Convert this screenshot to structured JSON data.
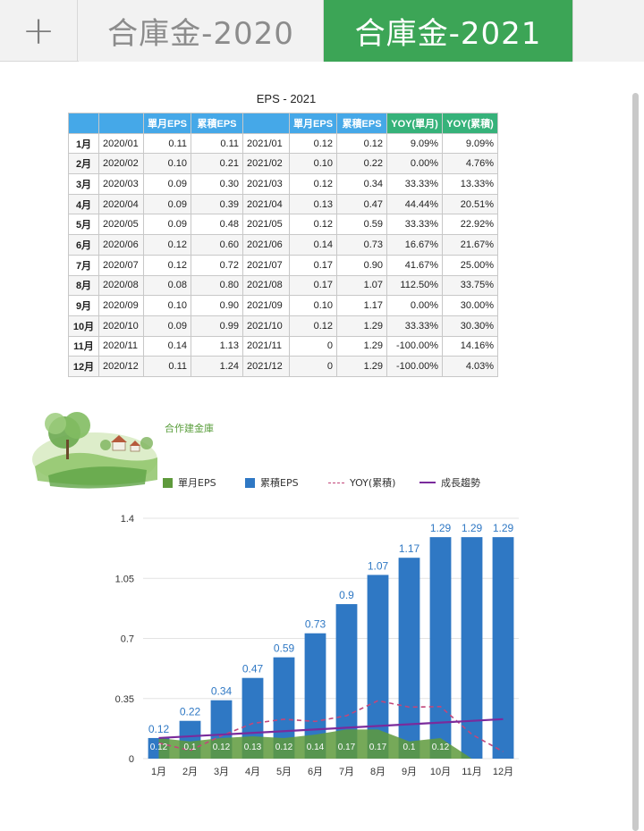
{
  "tabs": {
    "add_icon": "plus-icon",
    "add_glyph": "+",
    "items": [
      {
        "label": "合庫金-2020",
        "active": false
      },
      {
        "label": "合庫金-2021",
        "active": true
      }
    ],
    "active_color": "#3ca556"
  },
  "table": {
    "title": "EPS - 2021",
    "headers": [
      "",
      "",
      "單月EPS",
      "累積EPS",
      "",
      "單月EPS",
      "累積EPS",
      "YOY(單月)",
      "YOY(累積)"
    ],
    "header_colors": {
      "blue": "#45a8e8",
      "green": "#36b27a"
    },
    "rows": [
      [
        "1月",
        "2020/01",
        "0.11",
        "0.11",
        "2021/01",
        "0.12",
        "0.12",
        "9.09%",
        "9.09%"
      ],
      [
        "2月",
        "2020/02",
        "0.10",
        "0.21",
        "2021/02",
        "0.10",
        "0.22",
        "0.00%",
        "4.76%"
      ],
      [
        "3月",
        "2020/03",
        "0.09",
        "0.30",
        "2021/03",
        "0.12",
        "0.34",
        "33.33%",
        "13.33%"
      ],
      [
        "4月",
        "2020/04",
        "0.09",
        "0.39",
        "2021/04",
        "0.13",
        "0.47",
        "44.44%",
        "20.51%"
      ],
      [
        "5月",
        "2020/05",
        "0.09",
        "0.48",
        "2021/05",
        "0.12",
        "0.59",
        "33.33%",
        "22.92%"
      ],
      [
        "6月",
        "2020/06",
        "0.12",
        "0.60",
        "2021/06",
        "0.14",
        "0.73",
        "16.67%",
        "21.67%"
      ],
      [
        "7月",
        "2020/07",
        "0.12",
        "0.72",
        "2021/07",
        "0.17",
        "0.90",
        "41.67%",
        "25.00%"
      ],
      [
        "8月",
        "2020/08",
        "0.08",
        "0.80",
        "2021/08",
        "0.17",
        "1.07",
        "112.50%",
        "33.75%"
      ],
      [
        "9月",
        "2020/09",
        "0.10",
        "0.90",
        "2021/09",
        "0.10",
        "1.17",
        "0.00%",
        "30.00%"
      ],
      [
        "10月",
        "2020/10",
        "0.09",
        "0.99",
        "2021/10",
        "0.12",
        "1.29",
        "33.33%",
        "30.30%"
      ],
      [
        "11月",
        "2020/11",
        "0.14",
        "1.13",
        "2021/11",
        "0",
        "1.29",
        "-100.00%",
        "14.16%"
      ],
      [
        "12月",
        "2020/12",
        "0.11",
        "1.24",
        "2021/12",
        "0",
        "1.29",
        "-100.00%",
        "4.03%"
      ]
    ]
  },
  "brand": {
    "label": "合作建金庫",
    "logo_icon": "landscape-illustration-icon"
  },
  "legend": {
    "items": [
      {
        "label": "單月EPS",
        "kind": "bar",
        "color": "#5e9a3c"
      },
      {
        "label": "累積EPS",
        "kind": "bar",
        "color": "#2f78c4"
      },
      {
        "label": "YOY(累積)",
        "kind": "dashed-line",
        "color": "#c2477a"
      },
      {
        "label": "成長趨勢",
        "kind": "line",
        "color": "#7a2b9c"
      }
    ]
  },
  "chart_data": {
    "type": "bar",
    "categories": [
      "1月",
      "2月",
      "3月",
      "4月",
      "5月",
      "6月",
      "7月",
      "8月",
      "9月",
      "10月",
      "11月",
      "12月"
    ],
    "series": [
      {
        "name": "單月EPS",
        "type": "area",
        "color": "#5e9a3c",
        "values": [
          0.12,
          0.1,
          0.12,
          0.13,
          0.12,
          0.14,
          0.17,
          0.17,
          0.1,
          0.12,
          0,
          0
        ]
      },
      {
        "name": "累積EPS",
        "type": "bar",
        "color": "#2f78c4",
        "values": [
          0.12,
          0.22,
          0.34,
          0.47,
          0.59,
          0.73,
          0.9,
          1.07,
          1.17,
          1.29,
          1.29,
          1.29
        ]
      },
      {
        "name": "YOY(累積)",
        "type": "line",
        "dashed": true,
        "color": "#c2477a",
        "values": [
          0.0909,
          0.0476,
          0.1333,
          0.2051,
          0.2292,
          0.2167,
          0.25,
          0.3375,
          0.3,
          0.303,
          0.1416,
          0.0403
        ]
      },
      {
        "name": "成長趨勢",
        "type": "line",
        "color": "#7a2b9c",
        "values": [
          0.12,
          0.13,
          0.14,
          0.15,
          0.16,
          0.17,
          0.18,
          0.19,
          0.2,
          0.21,
          0.22,
          0.23
        ]
      }
    ],
    "bar_labels": [
      "0.12",
      "0.22",
      "0.34",
      "0.47",
      "0.59",
      "0.73",
      "0.9",
      "1.07",
      "1.17",
      "1.29",
      "1.29",
      "1.29"
    ],
    "area_labels": [
      "0.12",
      "0.1",
      "0.12",
      "0.13",
      "0.12",
      "0.14",
      "0.17",
      "0.17",
      "0.1",
      "0.12",
      "",
      ""
    ],
    "yticks": [
      "0",
      "0.35",
      "0.7",
      "1.05",
      "1.4"
    ],
    "ylim": [
      0,
      1.4
    ],
    "grid": true,
    "legend_position": "top"
  }
}
